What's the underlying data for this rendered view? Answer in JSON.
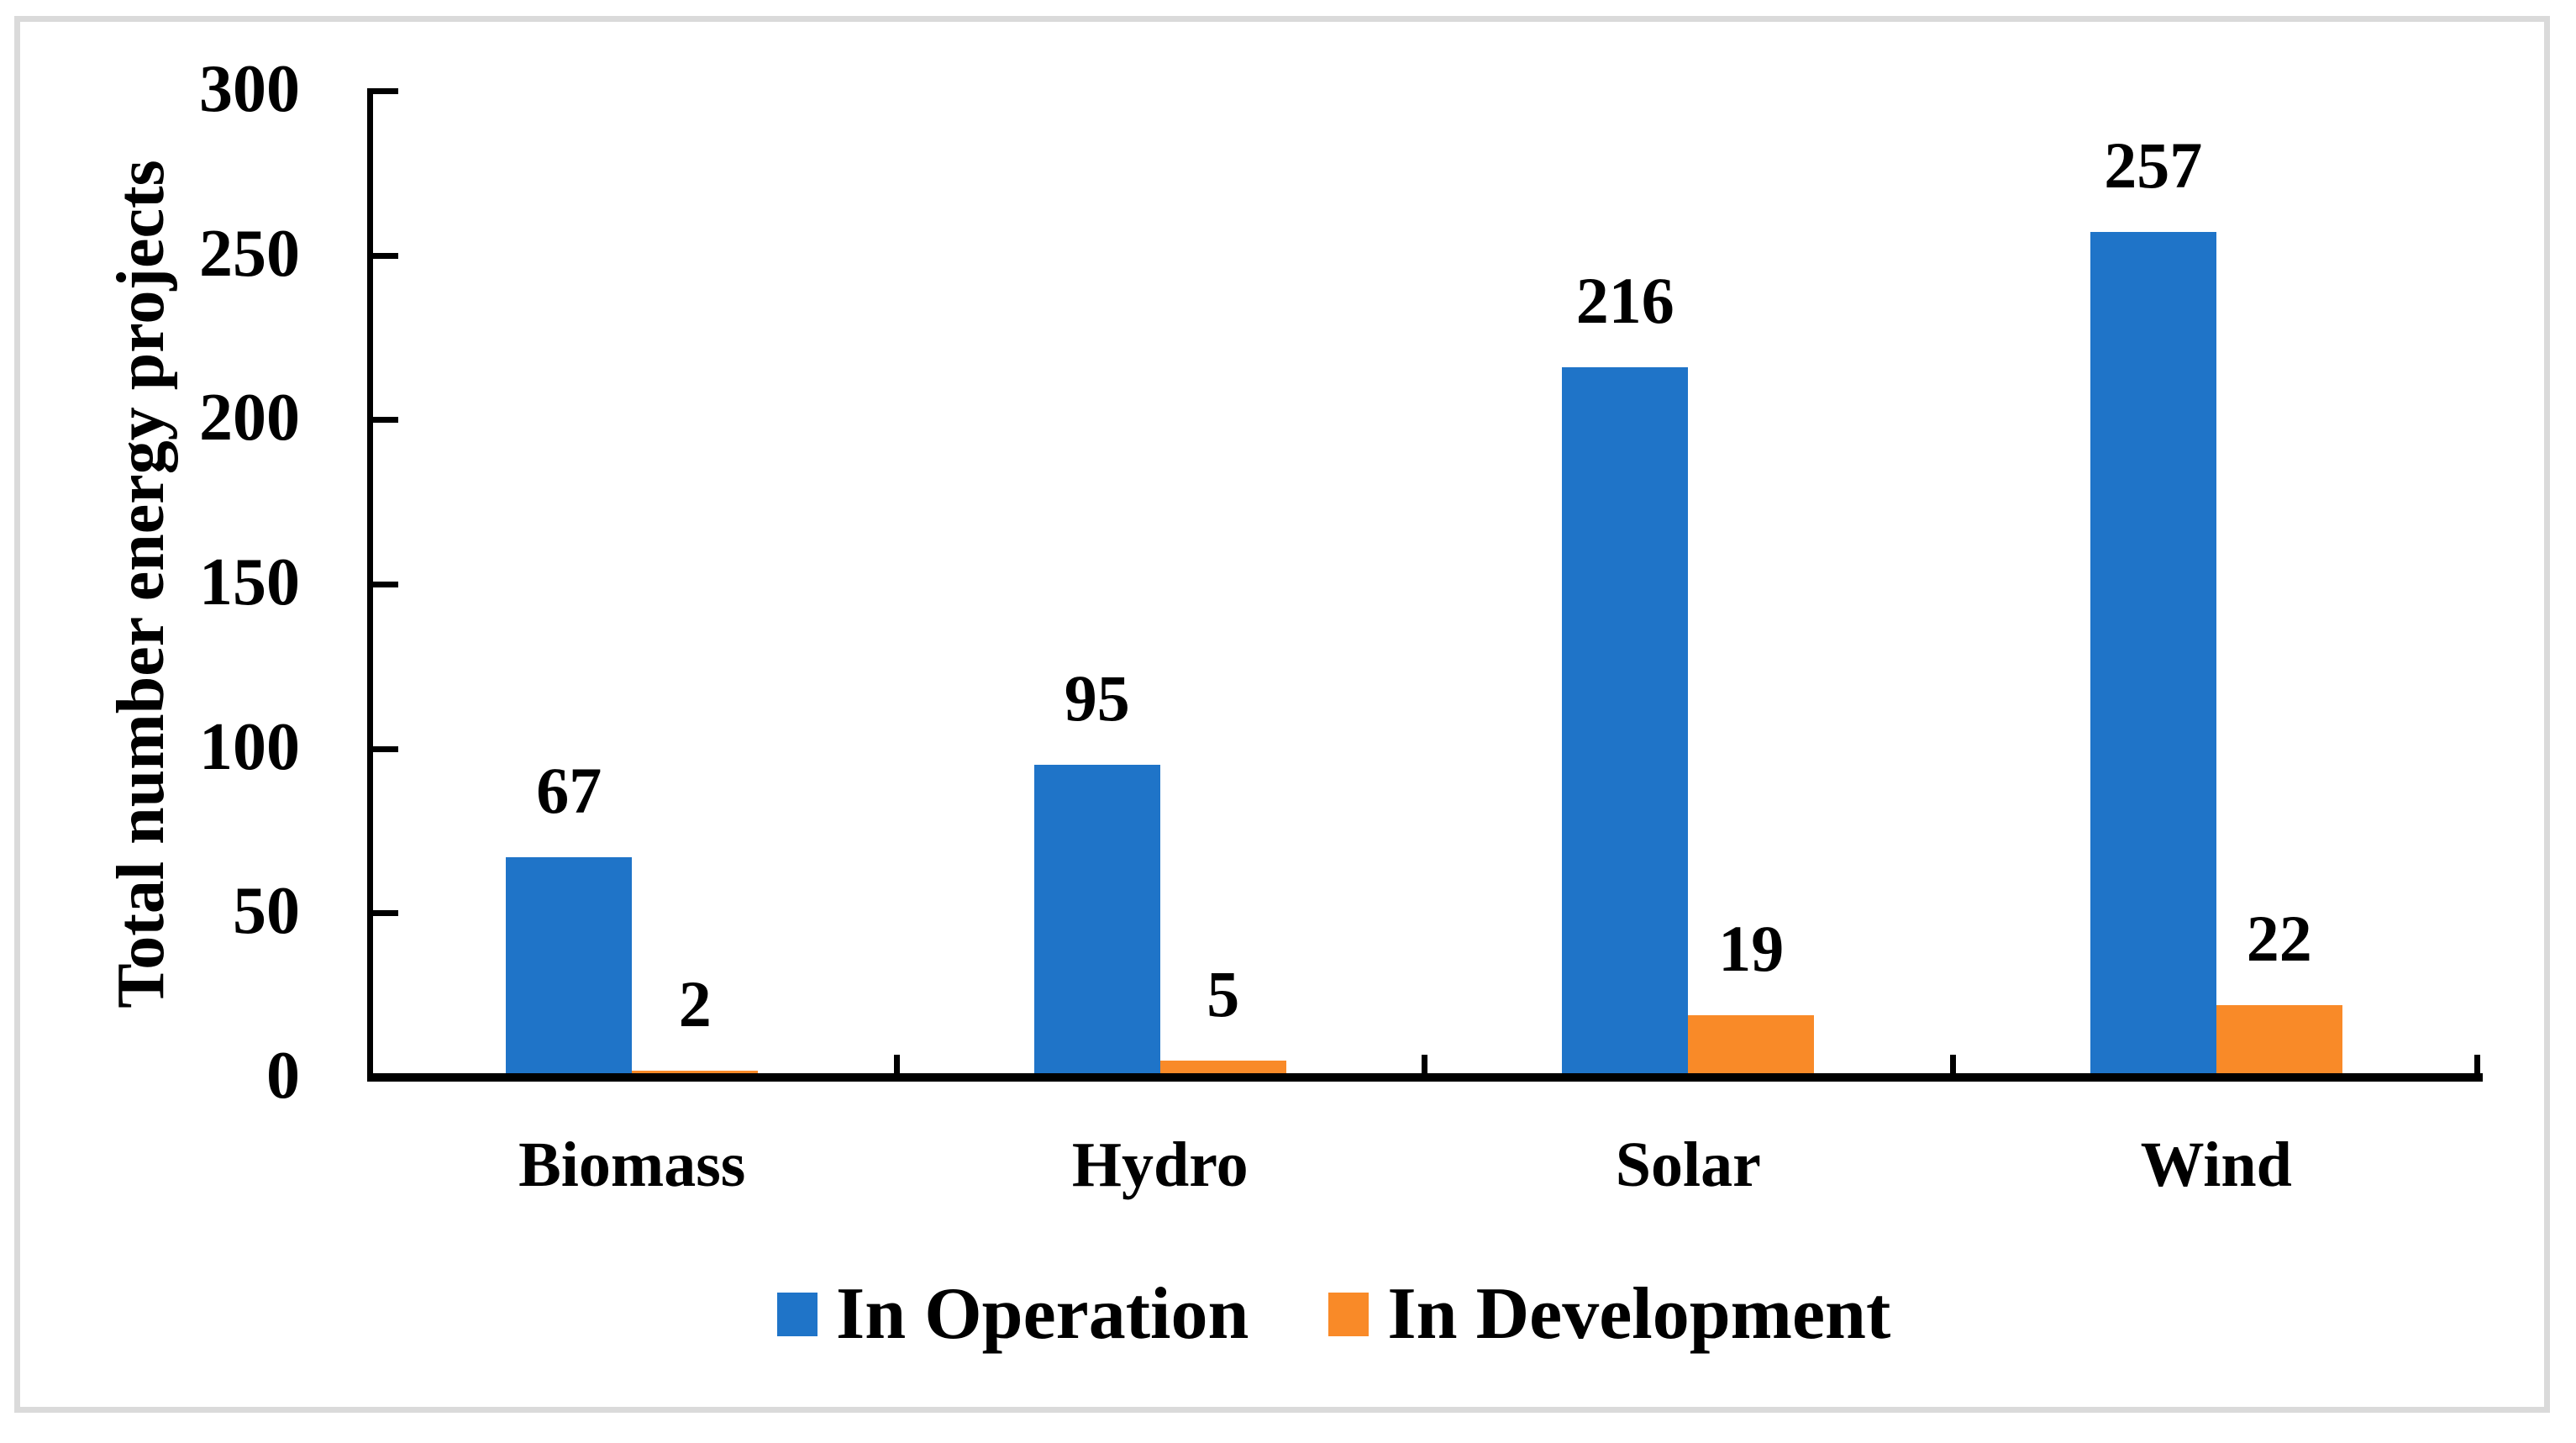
{
  "figure": {
    "background_color": "#FFFFFF",
    "border_color": "#DADADA",
    "axis_color": "#000000",
    "text_color": "#000000"
  },
  "chart_data": {
    "type": "bar",
    "title": "",
    "categories": [
      "Biomass",
      "Hydro",
      "Solar",
      "Wind"
    ],
    "series": [
      {
        "name": "In Operation",
        "color": "#1F74C8",
        "values": [
          67,
          95,
          216,
          257
        ]
      },
      {
        "name": "In Development",
        "color": "#F98A28",
        "values": [
          2,
          5,
          19,
          22
        ]
      }
    ],
    "xlabel": "",
    "ylabel": "Total number energy projects",
    "ylim": [
      0,
      300
    ],
    "yticks": [
      0,
      50,
      100,
      150,
      200,
      250,
      300
    ],
    "grid": false,
    "legend_position": "bottom",
    "value_labels_shown": true
  }
}
